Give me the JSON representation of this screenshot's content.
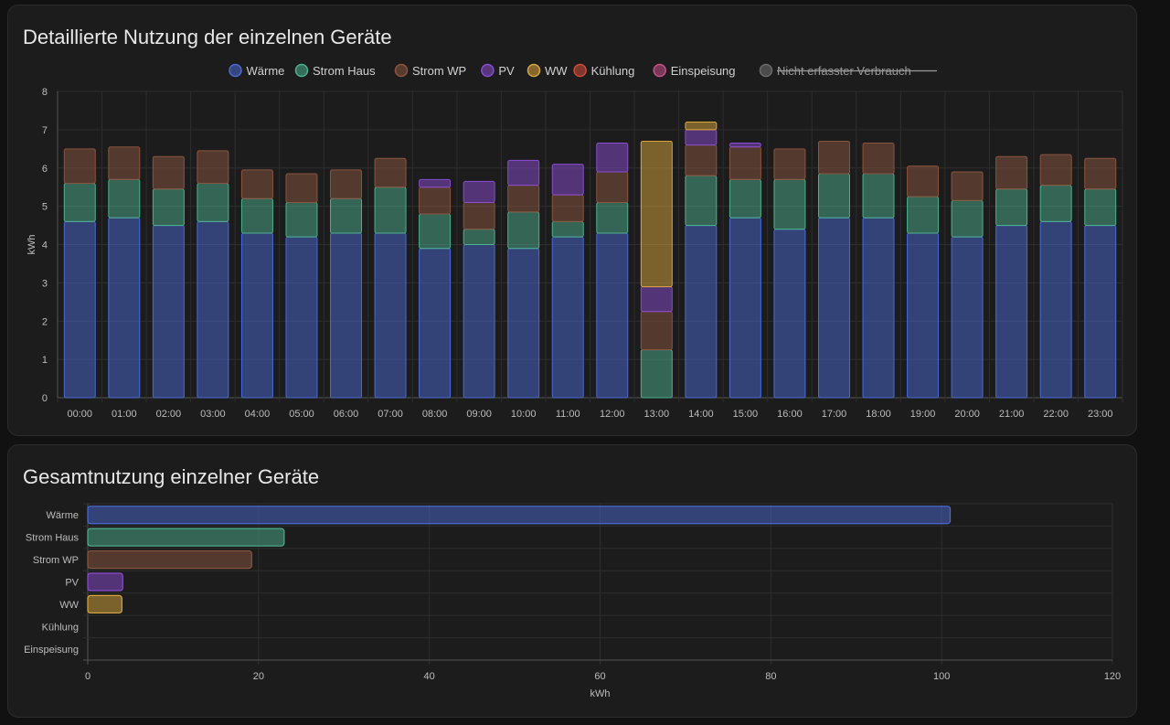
{
  "cards": [
    {
      "title": "Detaillierte Nutzung der einzelnen Geräte"
    },
    {
      "title": "Gesamtnutzung einzelner Geräte"
    }
  ],
  "chart_data": [
    {
      "type": "bar",
      "stacked": true,
      "title": "Detaillierte Nutzung der einzelnen Geräte",
      "ylabel": "kWh",
      "ylim": [
        0,
        8
      ],
      "yticks": [
        0,
        1,
        2,
        3,
        4,
        5,
        6,
        7,
        8
      ],
      "grid": true,
      "legend_position": "top",
      "categories": [
        "00:00",
        "01:00",
        "02:00",
        "03:00",
        "04:00",
        "05:00",
        "06:00",
        "07:00",
        "08:00",
        "09:00",
        "10:00",
        "11:00",
        "12:00",
        "13:00",
        "14:00",
        "15:00",
        "16:00",
        "17:00",
        "18:00",
        "19:00",
        "20:00",
        "21:00",
        "22:00",
        "23:00"
      ],
      "legend": [
        {
          "name": "Wärme",
          "color": "#4a6ad4",
          "hidden": false
        },
        {
          "name": "Strom Haus",
          "color": "#4db08e",
          "hidden": false
        },
        {
          "name": "Strom WP",
          "color": "#8a5540",
          "hidden": false
        },
        {
          "name": "PV",
          "color": "#8a4cd0",
          "hidden": false
        },
        {
          "name": "WW",
          "color": "#d9a63c",
          "hidden": false
        },
        {
          "name": "Kühlung",
          "color": "#d04c3c",
          "hidden": false
        },
        {
          "name": "Einspeisung",
          "color": "#c8508a",
          "hidden": false
        },
        {
          "name": "Nicht erfasster Verbrauch",
          "color": "#6a6a6a",
          "hidden": true
        }
      ],
      "series": [
        {
          "name": "Wärme",
          "color": "#4a6ad4",
          "values": [
            4.6,
            4.7,
            4.5,
            4.6,
            4.3,
            4.2,
            4.3,
            4.3,
            3.9,
            4.0,
            3.9,
            4.2,
            4.3,
            0,
            4.5,
            4.7,
            4.4,
            4.7,
            4.7,
            4.3,
            4.2,
            4.5,
            4.6,
            4.5
          ]
        },
        {
          "name": "Strom Haus",
          "color": "#4db08e",
          "values": [
            1.0,
            1.0,
            0.95,
            1.0,
            0.9,
            0.9,
            0.9,
            1.2,
            0.9,
            0.4,
            0.95,
            0.4,
            0.8,
            1.25,
            1.3,
            1.0,
            1.3,
            1.15,
            1.15,
            0.95,
            0.95,
            0.95,
            0.95,
            0.95
          ]
        },
        {
          "name": "Strom WP",
          "color": "#8a5540",
          "values": [
            0.9,
            0.85,
            0.85,
            0.85,
            0.75,
            0.75,
            0.75,
            0.75,
            0.7,
            0.7,
            0.7,
            0.7,
            0.8,
            1.0,
            0.8,
            0.85,
            0.8,
            0.85,
            0.8,
            0.8,
            0.75,
            0.85,
            0.8,
            0.8
          ]
        },
        {
          "name": "PV",
          "color": "#8a4cd0",
          "values": [
            0,
            0,
            0,
            0,
            0,
            0,
            0,
            0,
            0.2,
            0.55,
            0.65,
            0.8,
            0.75,
            0.65,
            0.4,
            0.1,
            0,
            0,
            0,
            0,
            0,
            0,
            0,
            0
          ]
        },
        {
          "name": "WW",
          "color": "#d9a63c",
          "values": [
            0,
            0,
            0,
            0,
            0,
            0,
            0,
            0,
            0,
            0,
            0,
            0,
            0,
            3.8,
            0.2,
            0,
            0,
            0,
            0,
            0,
            0,
            0,
            0,
            0
          ]
        },
        {
          "name": "Kühlung",
          "color": "#d04c3c",
          "values": [
            0,
            0,
            0,
            0,
            0,
            0,
            0,
            0,
            0,
            0,
            0,
            0,
            0,
            0,
            0,
            0,
            0,
            0,
            0,
            0,
            0,
            0,
            0,
            0
          ]
        },
        {
          "name": "Einspeisung",
          "color": "#c8508a",
          "values": [
            0,
            0,
            0,
            0,
            0,
            0,
            0,
            0,
            0,
            0,
            0,
            0,
            0,
            0,
            0,
            0,
            0,
            0,
            0,
            0,
            0,
            0,
            0,
            0
          ]
        }
      ]
    },
    {
      "type": "bar",
      "orientation": "horizontal",
      "title": "Gesamtnutzung einzelner Geräte",
      "xlabel": "kWh",
      "xlim": [
        0,
        120
      ],
      "xticks": [
        0,
        20,
        40,
        60,
        80,
        100,
        120
      ],
      "grid": true,
      "categories": [
        "Wärme",
        "Strom Haus",
        "Strom WP",
        "PV",
        "WW",
        "Kühlung",
        "Einspeisung"
      ],
      "colors": [
        "#4a6ad4",
        "#4db08e",
        "#8a5540",
        "#8a4cd0",
        "#d9a63c",
        "#d04c3c",
        "#c8508a"
      ],
      "values": [
        101,
        23,
        19.2,
        4.1,
        4.0,
        0,
        0
      ]
    }
  ]
}
